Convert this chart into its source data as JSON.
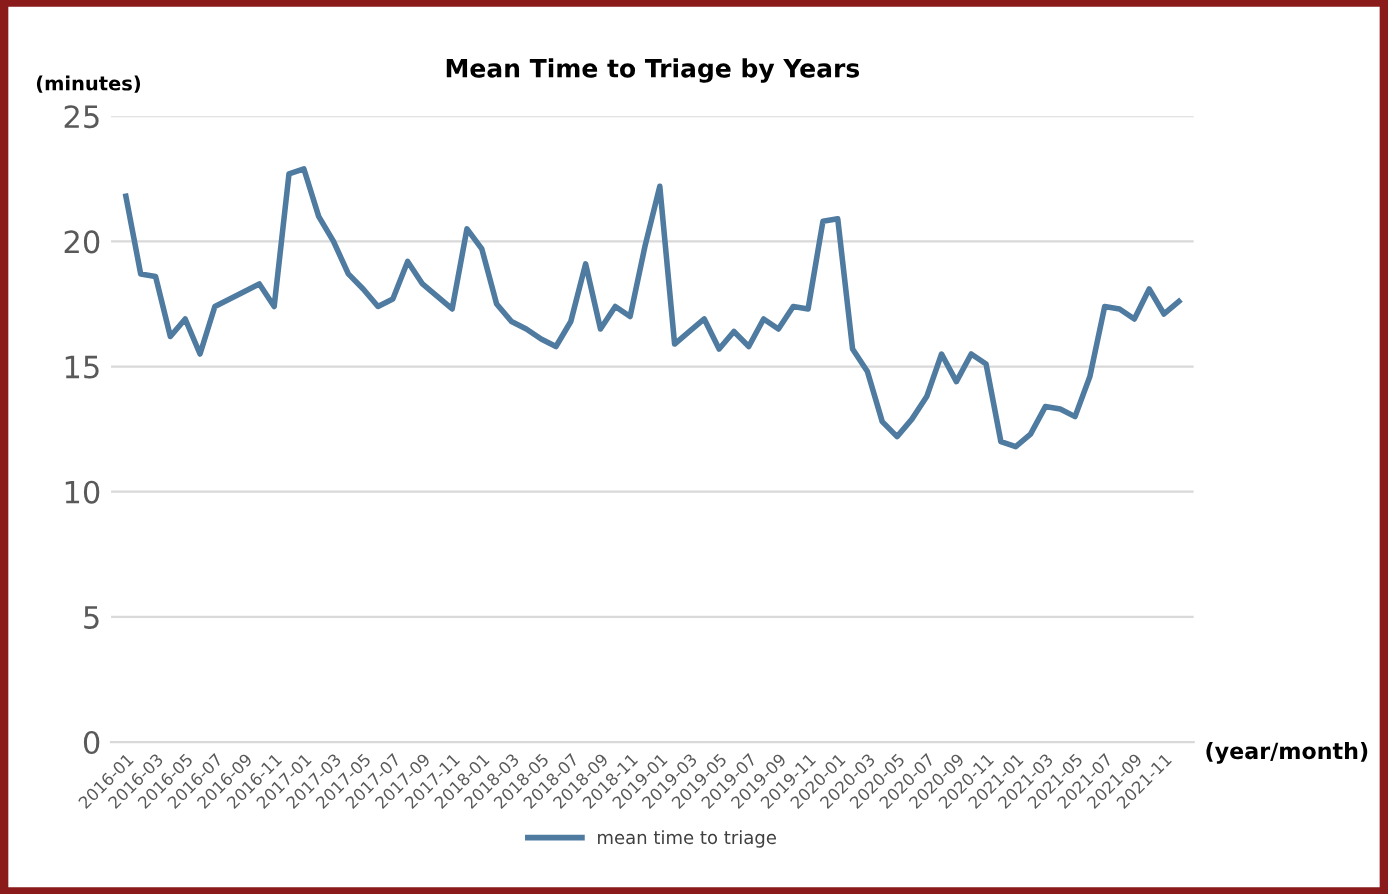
{
  "chart_data": {
    "type": "line",
    "title": "Mean Time to Triage by Years",
    "ylabel": "(minutes)",
    "xlabel": "(year/month)",
    "categories": [
      "2016-01",
      null,
      "2016-03",
      null,
      "2016-05",
      null,
      "2016-07",
      null,
      "2016-09",
      null,
      "2016-11",
      null,
      "2017-01",
      null,
      "2017-03",
      null,
      "2017-05",
      null,
      "2017-07",
      null,
      "2017-09",
      null,
      "2017-11",
      null,
      "2018-01",
      null,
      "2018-03",
      null,
      "2018-05",
      null,
      "2018-07",
      null,
      "2018-09",
      null,
      "2018-11",
      null,
      "2019-01",
      null,
      "2019-03",
      null,
      "2019-05",
      null,
      "2019-07",
      null,
      "2019-09",
      null,
      "2019-11",
      null,
      "2020-01",
      null,
      "2020-03",
      null,
      "2020-05",
      null,
      "2020-07",
      null,
      "2020-09",
      null,
      "2020-11",
      null,
      "2021-01",
      null,
      "2021-03",
      null,
      "2021-05",
      null,
      "2021-07",
      null,
      "2021-09",
      null,
      "2021-11",
      null
    ],
    "series": [
      {
        "name": "mean time to triage",
        "color": "#4f7ba1",
        "values": [
          21.8,
          18.7,
          18.6,
          16.2,
          16.9,
          15.5,
          17.4,
          17.7,
          18.0,
          18.3,
          17.4,
          22.7,
          22.9,
          21.0,
          20.0,
          18.7,
          18.1,
          17.4,
          17.7,
          19.2,
          18.3,
          17.8,
          17.3,
          20.5,
          19.7,
          17.5,
          16.8,
          16.5,
          16.1,
          15.8,
          16.8,
          19.1,
          16.5,
          17.4,
          17.0,
          19.8,
          22.2,
          15.9,
          16.4,
          16.9,
          15.7,
          16.4,
          15.8,
          16.9,
          16.5,
          17.4,
          17.3,
          20.8,
          20.9,
          15.7,
          14.8,
          12.8,
          12.2,
          12.9,
          13.8,
          15.5,
          14.4,
          15.5,
          15.1,
          12.0,
          11.8,
          12.3,
          13.4,
          13.3,
          13.0,
          14.6,
          17.4,
          17.3,
          16.9,
          18.1,
          17.1,
          17.6
        ]
      }
    ],
    "ylim": [
      0,
      25
    ],
    "yticks": [
      0,
      5,
      10,
      15,
      20,
      25
    ],
    "grid": "y",
    "legend": "bottom",
    "marker": "none",
    "line_style": "solid"
  }
}
